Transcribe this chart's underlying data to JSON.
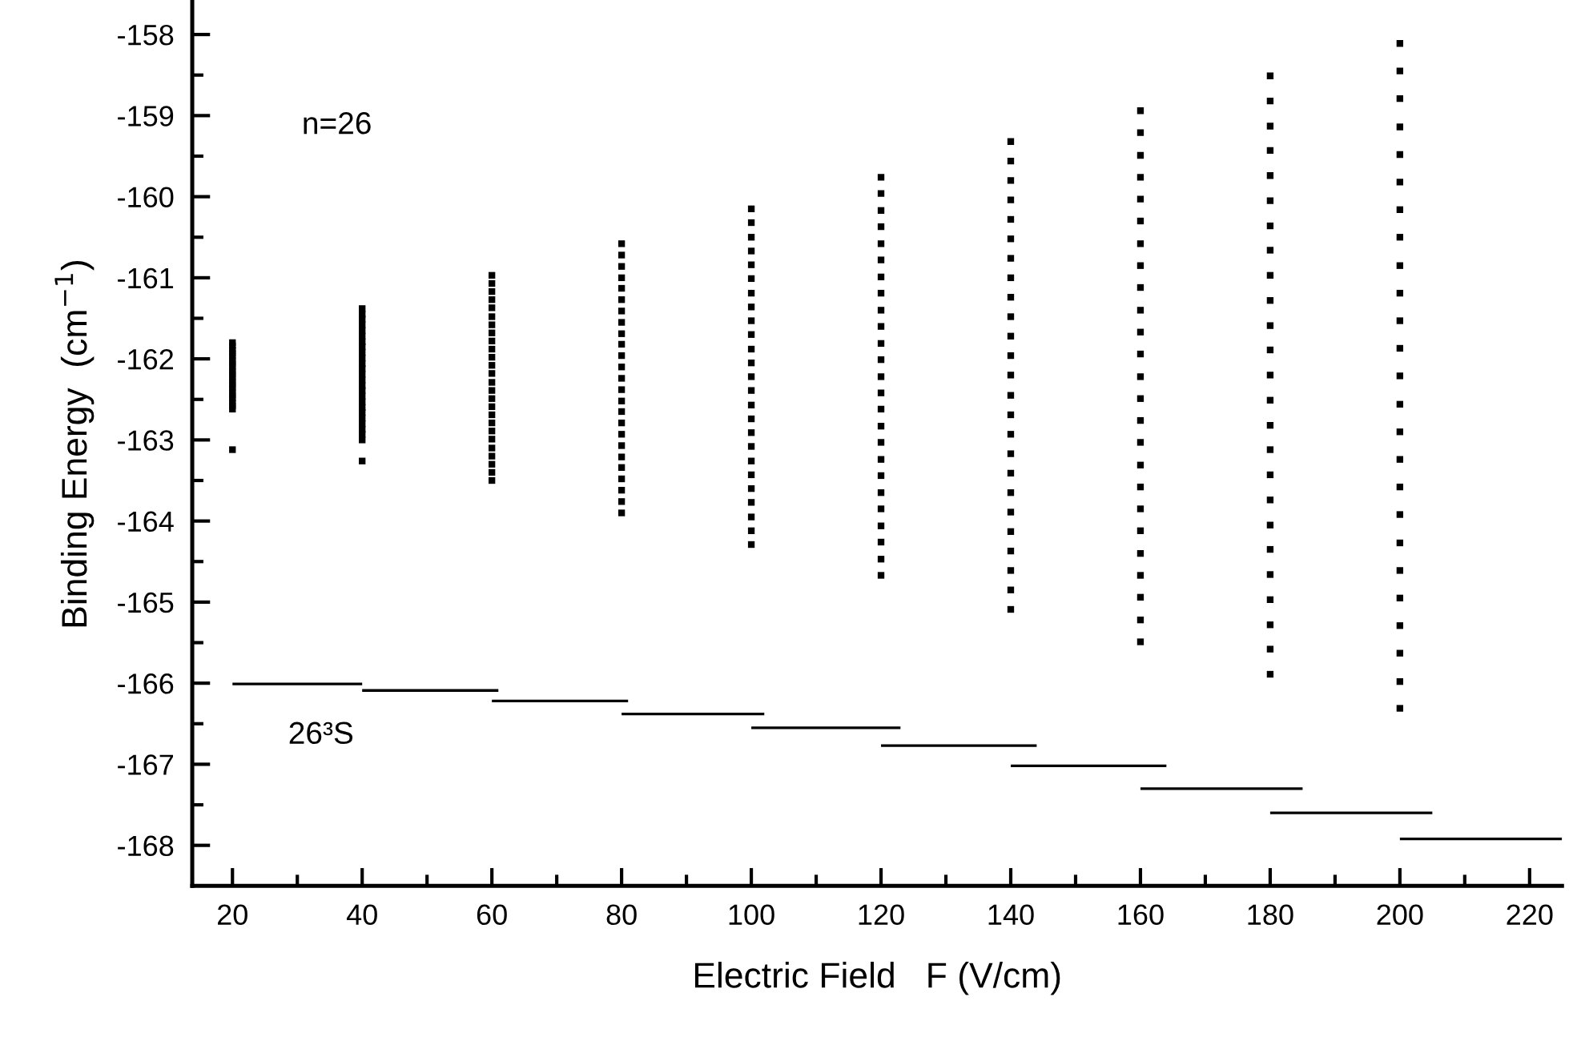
{
  "chart_data": {
    "type": "scatter",
    "xlabel": "Electric Field   F (V/cm)",
    "ylabel": "Binding Energy  (cm$^{−1}$)",
    "annotations": [
      "n=26",
      "26³S"
    ],
    "xlim": [
      13.8,
      225
    ],
    "ylim": [
      -168.5,
      -157.6
    ],
    "xticks": [
      20,
      {
        "value": 30,
        "label": null
      },
      40,
      {
        "value": 50,
        "label": null
      },
      60,
      {
        "value": 70,
        "label": null
      },
      80,
      {
        "value": 90,
        "label": null
      },
      100,
      {
        "value": 110,
        "label": null
      },
      120,
      {
        "value": 130,
        "label": null
      },
      140,
      {
        "value": 150,
        "label": null
      },
      160,
      {
        "value": 170,
        "label": null
      },
      180,
      {
        "value": 190,
        "label": null
      },
      200,
      {
        "value": 210,
        "label": null
      },
      220
    ],
    "yticks": [
      -168,
      {
        "value": -167.5,
        "label": null
      },
      -167,
      {
        "value": -166.5,
        "label": null
      },
      -166,
      {
        "value": -165.5,
        "label": null
      },
      -165,
      {
        "value": -164.5,
        "label": null
      },
      -164,
      {
        "value": -163.5,
        "label": null
      },
      -163,
      {
        "value": -162.5,
        "label": null
      },
      -162,
      {
        "value": -161.5,
        "label": null
      },
      -161,
      {
        "value": -160.5,
        "label": null
      },
      -160,
      {
        "value": -159.5,
        "label": null
      },
      -159,
      {
        "value": -158.5,
        "label": null
      },
      -158
    ],
    "x": [
      20,
      20,
      20,
      20,
      20,
      20,
      20,
      20,
      20,
      20,
      20,
      20,
      20,
      20,
      20,
      20,
      20,
      20,
      20,
      20,
      20,
      40,
      40,
      40,
      40,
      40,
      40,
      40,
      40,
      40,
      40,
      40,
      40,
      40,
      40,
      40,
      40,
      40,
      40,
      40,
      40,
      40,
      40,
      40,
      40,
      40,
      40,
      60,
      60,
      60,
      60,
      60,
      60,
      60,
      60,
      60,
      60,
      60,
      60,
      60,
      60,
      60,
      60,
      60,
      60,
      60,
      60,
      60,
      60,
      60,
      60,
      60,
      60,
      80,
      80,
      80,
      80,
      80,
      80,
      80,
      80,
      80,
      80,
      80,
      80,
      80,
      80,
      80,
      80,
      80,
      80,
      80,
      80,
      80,
      80,
      80,
      80,
      80,
      100,
      100,
      100,
      100,
      100,
      100,
      100,
      100,
      100,
      100,
      100,
      100,
      100,
      100,
      100,
      100,
      100,
      100,
      100,
      100,
      100,
      100,
      100,
      100,
      100,
      120,
      120,
      120,
      120,
      120,
      120,
      120,
      120,
      120,
      120,
      120,
      120,
      120,
      120,
      120,
      120,
      120,
      120,
      120,
      120,
      120,
      120,
      120,
      120,
      120,
      140,
      140,
      140,
      140,
      140,
      140,
      140,
      140,
      140,
      140,
      140,
      140,
      140,
      140,
      140,
      140,
      140,
      140,
      140,
      140,
      140,
      140,
      140,
      140,
      140,
      160,
      160,
      160,
      160,
      160,
      160,
      160,
      160,
      160,
      160,
      160,
      160,
      160,
      160,
      160,
      160,
      160,
      160,
      160,
      160,
      160,
      160,
      160,
      160,
      160,
      180,
      180,
      180,
      180,
      180,
      180,
      180,
      180,
      180,
      180,
      180,
      180,
      180,
      180,
      180,
      180,
      180,
      180,
      180,
      180,
      180,
      180,
      180,
      180,
      180,
      200,
      200,
      200,
      200,
      200,
      200,
      200,
      200,
      200,
      200,
      200,
      200,
      200,
      200,
      200,
      200,
      200,
      200,
      200,
      200,
      200,
      200,
      200,
      200,
      200
    ],
    "series": [
      {
        "color": "#000000",
        "marker": "square",
        "values": [
          -161.8,
          -161.84,
          -161.89,
          -161.93,
          -161.97,
          -162.02,
          -162.06,
          -162.1,
          -162.15,
          -162.19,
          -162.23,
          -162.28,
          -162.32,
          -162.36,
          -162.41,
          -162.45,
          -162.49,
          -162.54,
          -162.58,
          -162.62,
          -163.12,
          -161.38,
          -161.45,
          -161.51,
          -161.58,
          -161.65,
          -161.72,
          -161.79,
          -161.85,
          -161.92,
          -161.99,
          -162.06,
          -162.12,
          -162.19,
          -162.26,
          -162.33,
          -162.39,
          -162.46,
          -162.53,
          -162.6,
          -162.66,
          -162.73,
          -162.8,
          -162.87,
          -162.93,
          -163.0,
          -163.26,
          -160.97,
          -161.07,
          -161.17,
          -161.27,
          -161.37,
          -161.48,
          -161.58,
          -161.68,
          -161.78,
          -161.88,
          -161.98,
          -162.08,
          -162.18,
          -162.29,
          -162.39,
          -162.49,
          -162.59,
          -162.69,
          -162.79,
          -162.89,
          -162.99,
          -163.1,
          -163.2,
          -163.3,
          -163.4,
          -163.5,
          -160.58,
          -160.72,
          -160.86,
          -161.0,
          -161.13,
          -161.27,
          -161.41,
          -161.55,
          -161.69,
          -161.82,
          -161.96,
          -162.1,
          -162.24,
          -162.38,
          -162.52,
          -162.65,
          -162.79,
          -162.93,
          -163.07,
          -163.21,
          -163.34,
          -163.48,
          -163.62,
          -163.76,
          -163.9,
          -160.15,
          -160.32,
          -160.5,
          -160.67,
          -160.84,
          -161.01,
          -161.19,
          -161.36,
          -161.53,
          -161.7,
          -161.88,
          -162.05,
          -162.22,
          -162.39,
          -162.57,
          -162.74,
          -162.91,
          -163.08,
          -163.26,
          -163.43,
          -163.6,
          -163.77,
          -163.95,
          -164.12,
          -164.29,
          -159.76,
          -159.96,
          -160.17,
          -160.37,
          -160.58,
          -160.78,
          -160.99,
          -161.19,
          -161.4,
          -161.6,
          -161.81,
          -162.01,
          -162.22,
          -162.42,
          -162.62,
          -162.83,
          -163.03,
          -163.24,
          -163.44,
          -163.65,
          -163.85,
          -164.06,
          -164.26,
          -164.47,
          -164.67,
          -159.32,
          -159.56,
          -159.8,
          -160.04,
          -160.28,
          -160.52,
          -160.76,
          -161.0,
          -161.24,
          -161.48,
          -161.72,
          -161.96,
          -162.2,
          -162.45,
          -162.69,
          -162.93,
          -163.17,
          -163.41,
          -163.65,
          -163.89,
          -164.13,
          -164.37,
          -164.61,
          -164.85,
          -165.09,
          -158.94,
          -159.21,
          -159.49,
          -159.76,
          -160.03,
          -160.3,
          -160.58,
          -160.85,
          -161.12,
          -161.4,
          -161.67,
          -161.94,
          -162.22,
          -162.49,
          -162.76,
          -163.03,
          -163.31,
          -163.58,
          -163.85,
          -164.12,
          -164.4,
          -164.67,
          -164.94,
          -165.22,
          -165.49,
          -158.51,
          -158.82,
          -159.13,
          -159.43,
          -159.74,
          -160.05,
          -160.36,
          -160.66,
          -160.97,
          -161.28,
          -161.59,
          -161.89,
          -162.2,
          -162.51,
          -162.82,
          -163.12,
          -163.43,
          -163.74,
          -164.05,
          -164.35,
          -164.66,
          -164.97,
          -165.28,
          -165.58,
          -165.89,
          -158.11,
          -158.45,
          -158.79,
          -159.14,
          -159.48,
          -159.82,
          -160.16,
          -160.5,
          -160.85,
          -161.19,
          -161.53,
          -161.87,
          -162.21,
          -162.56,
          -162.9,
          -163.24,
          -163.58,
          -163.92,
          -164.27,
          -164.61,
          -164.95,
          -165.29,
          -165.63,
          -165.98,
          -166.31
        ]
      },
      {
        "type": "line",
        "color": "#000000",
        "x": [
          20,
          40
        ],
        "values": [
          -166.01,
          -166.01
        ]
      },
      {
        "type": "line",
        "color": "#000000",
        "x": [
          40,
          61
        ],
        "values": [
          -166.09,
          -166.09
        ]
      },
      {
        "type": "line",
        "color": "#000000",
        "x": [
          60,
          81
        ],
        "values": [
          -166.22,
          -166.22
        ]
      },
      {
        "type": "line",
        "color": "#000000",
        "x": [
          80,
          102
        ],
        "values": [
          -166.38,
          -166.38
        ]
      },
      {
        "type": "line",
        "color": "#000000",
        "x": [
          100,
          123
        ],
        "values": [
          -166.55,
          -166.55
        ]
      },
      {
        "type": "line",
        "color": "#000000",
        "x": [
          120,
          144
        ],
        "values": [
          -166.77,
          -166.77
        ]
      },
      {
        "type": "line",
        "color": "#000000",
        "x": [
          140,
          164
        ],
        "values": [
          -167.02,
          -167.02
        ]
      },
      {
        "type": "line",
        "color": "#000000",
        "x": [
          160,
          185
        ],
        "values": [
          -167.3,
          -167.3
        ]
      },
      {
        "type": "line",
        "color": "#000000",
        "x": [
          180,
          205
        ],
        "values": [
          -167.6,
          -167.6
        ]
      },
      {
        "type": "line",
        "color": "#000000",
        "x": [
          200,
          225
        ],
        "values": [
          -167.92,
          -167.92
        ]
      }
    ]
  }
}
